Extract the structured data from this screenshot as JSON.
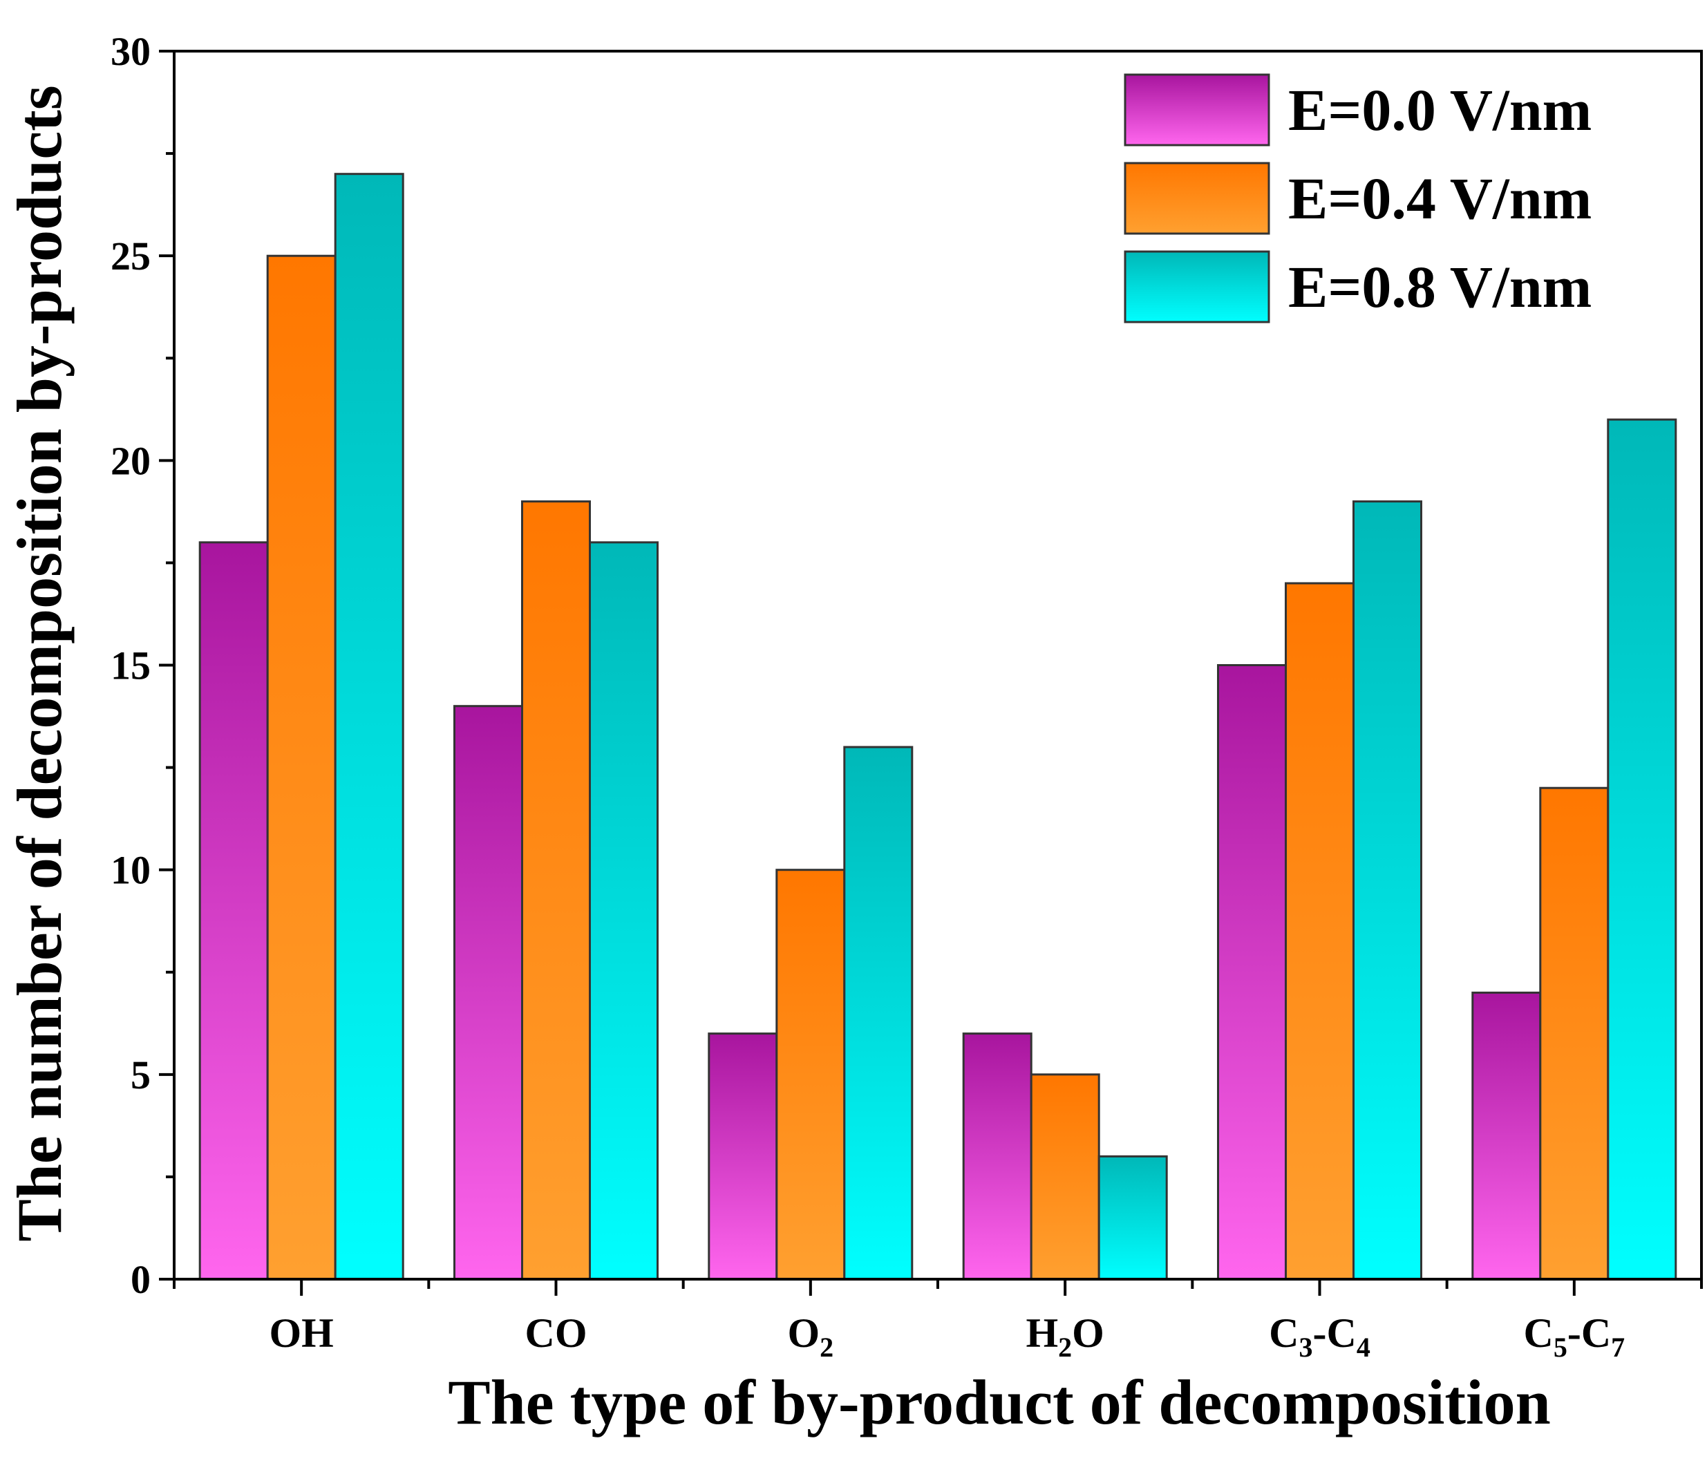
{
  "chart_data": {
    "type": "bar",
    "title": "",
    "xlabel": "The type of by-product of decomposition",
    "ylabel": "The number of decomposition by-products",
    "ylim": [
      0,
      30
    ],
    "yticks": [
      0,
      5,
      10,
      15,
      20,
      25,
      30
    ],
    "categories": [
      {
        "label": "OH",
        "parts": [
          [
            "OH",
            ""
          ]
        ]
      },
      {
        "label": "CO",
        "parts": [
          [
            "CO",
            ""
          ]
        ]
      },
      {
        "label": "O2",
        "parts": [
          [
            "O",
            ""
          ],
          [
            "2",
            "sub"
          ]
        ]
      },
      {
        "label": "H2O",
        "parts": [
          [
            "H",
            ""
          ],
          [
            "2",
            "sub"
          ],
          [
            "O",
            ""
          ]
        ]
      },
      {
        "label": "C3-C4",
        "parts": [
          [
            "C",
            ""
          ],
          [
            "3",
            "sub"
          ],
          [
            "-C",
            ""
          ],
          [
            "4",
            "sub"
          ]
        ]
      },
      {
        "label": "C5-C7",
        "parts": [
          [
            "C",
            ""
          ],
          [
            "5",
            "sub"
          ],
          [
            "-C",
            ""
          ],
          [
            "7",
            "sub"
          ]
        ]
      }
    ],
    "series": [
      {
        "name": "E=0.0 V/nm",
        "values": [
          18,
          14,
          6,
          6,
          15,
          7
        ],
        "color_top": "#A8159E",
        "color_bottom": "#FF66EE"
      },
      {
        "name": "E=0.4 V/nm",
        "values": [
          25,
          19,
          10,
          5,
          17,
          12
        ],
        "color_top": "#FF7700",
        "color_bottom": "#FFA030"
      },
      {
        "name": "E=0.8 V/nm",
        "values": [
          27,
          18,
          13,
          3,
          19,
          21
        ],
        "color_top": "#00B8B8",
        "color_bottom": "#00FFFF"
      }
    ],
    "legend": {
      "position": "top-right"
    },
    "grid": false
  }
}
